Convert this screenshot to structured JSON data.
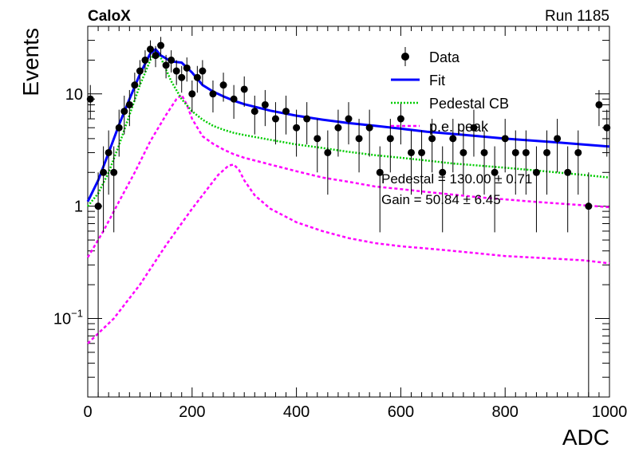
{
  "header": {
    "left": "CaloX",
    "right": "Run 1185"
  },
  "stats": [
    "Pedestal = 130.00 ± 0.71",
    "Gain = 50.84 ± 6.45"
  ],
  "chart_data": {
    "type": "scatter",
    "xlabel": "ADC",
    "ylabel": "Events",
    "xlim": [
      0,
      1000
    ],
    "ylim": [
      0.02,
      40
    ],
    "yscale": "log",
    "x_ticks": [
      "0",
      "200",
      "400",
      "600",
      "800",
      "1000"
    ],
    "y_ticks": [
      {
        "value": 0.1,
        "base": "10",
        "exp": "−1"
      },
      {
        "value": 1,
        "label": "1"
      },
      {
        "value": 10,
        "label": "10"
      }
    ],
    "legend": [
      {
        "label": "Data",
        "color": "#000000",
        "style": "marker"
      },
      {
        "label": "Fit",
        "color": "#0000ff",
        "style": "solid"
      },
      {
        "label": "Pedestal CB",
        "color": "#00cc00",
        "style": "dotted"
      },
      {
        "label": "p.e. peak",
        "color": "#ff00ff",
        "style": "dashed"
      }
    ],
    "data": {
      "name": "Data",
      "x": [
        5,
        20,
        30,
        40,
        50,
        60,
        70,
        80,
        90,
        100,
        110,
        120,
        130,
        140,
        150,
        160,
        170,
        180,
        190,
        200,
        210,
        220,
        240,
        260,
        280,
        300,
        320,
        340,
        360,
        380,
        400,
        420,
        440,
        460,
        480,
        500,
        520,
        540,
        560,
        580,
        600,
        620,
        640,
        660,
        680,
        700,
        720,
        740,
        760,
        780,
        800,
        820,
        840,
        860,
        880,
        900,
        920,
        940,
        960,
        980,
        995
      ],
      "y": [
        9,
        1,
        2,
        3,
        2,
        5,
        7,
        8,
        12,
        16,
        20,
        25,
        22,
        27,
        18,
        20,
        16,
        14,
        17,
        10,
        14,
        16,
        10,
        12,
        9,
        11,
        7,
        8,
        6,
        7,
        5,
        6,
        4,
        3,
        5,
        6,
        4,
        5,
        2,
        4,
        6,
        3,
        3,
        4,
        2,
        4,
        3,
        5,
        3,
        2,
        4,
        3,
        3,
        2,
        3,
        4,
        2,
        3,
        1,
        8,
        5
      ]
    },
    "fit": {
      "name": "Fit",
      "x": [
        0,
        20,
        40,
        60,
        80,
        100,
        120,
        130,
        140,
        160,
        180,
        200,
        220,
        240,
        260,
        280,
        300,
        350,
        400,
        450,
        500,
        550,
        600,
        650,
        700,
        750,
        800,
        850,
        900,
        950,
        1000
      ],
      "y": [
        1.1,
        1.7,
        3.0,
        5.3,
        9.0,
        15.0,
        23.0,
        25.0,
        22.0,
        19.5,
        19.0,
        15.5,
        12.0,
        10.5,
        9.5,
        8.7,
        8.1,
        7.1,
        6.4,
        5.9,
        5.5,
        5.2,
        4.9,
        4.6,
        4.4,
        4.2,
        4.0,
        3.85,
        3.7,
        3.55,
        3.4
      ]
    },
    "pedestal_cb": {
      "name": "Pedestal CB",
      "x": [
        0,
        20,
        40,
        60,
        80,
        100,
        120,
        130,
        140,
        160,
        180,
        200,
        220,
        240,
        260,
        280,
        300,
        350,
        400,
        450,
        500,
        550,
        600,
        650,
        700,
        750,
        800,
        850,
        900,
        950,
        1000
      ],
      "y": [
        1.0,
        1.3,
        2.0,
        3.5,
        6.5,
        12.0,
        20.0,
        24.0,
        21.0,
        13.0,
        9.0,
        7.0,
        5.9,
        5.2,
        4.8,
        4.5,
        4.3,
        3.9,
        3.55,
        3.3,
        3.05,
        2.85,
        2.7,
        2.55,
        2.4,
        2.3,
        2.2,
        2.1,
        2.0,
        1.9,
        1.8
      ]
    },
    "pe_peak_1": {
      "name": "p.e. peak",
      "x": [
        0,
        30,
        60,
        90,
        120,
        150,
        170,
        180,
        190,
        200,
        220,
        240,
        260,
        280,
        300,
        350,
        400,
        450,
        500,
        550,
        600,
        650,
        700,
        750,
        800,
        850,
        900,
        950,
        1000
      ],
      "y": [
        0.35,
        0.6,
        1.1,
        2.0,
        3.8,
        6.5,
        9.0,
        9.8,
        8.0,
        6.0,
        4.2,
        3.6,
        3.2,
        2.9,
        2.7,
        2.35,
        2.05,
        1.8,
        1.65,
        1.5,
        1.42,
        1.34,
        1.27,
        1.2,
        1.15,
        1.1,
        1.06,
        1.02,
        0.98
      ]
    },
    "pe_peak_2": {
      "name": "p.e. peak",
      "x": [
        0,
        50,
        100,
        150,
        200,
        250,
        270,
        280,
        290,
        300,
        320,
        350,
        400,
        450,
        500,
        550,
        600,
        650,
        700,
        750,
        800,
        850,
        900,
        950,
        1000
      ],
      "y": [
        0.06,
        0.1,
        0.2,
        0.45,
        0.95,
        1.9,
        2.3,
        2.35,
        2.1,
        1.7,
        1.25,
        0.95,
        0.72,
        0.6,
        0.52,
        0.47,
        0.44,
        0.42,
        0.4,
        0.38,
        0.36,
        0.35,
        0.34,
        0.33,
        0.31
      ]
    }
  }
}
